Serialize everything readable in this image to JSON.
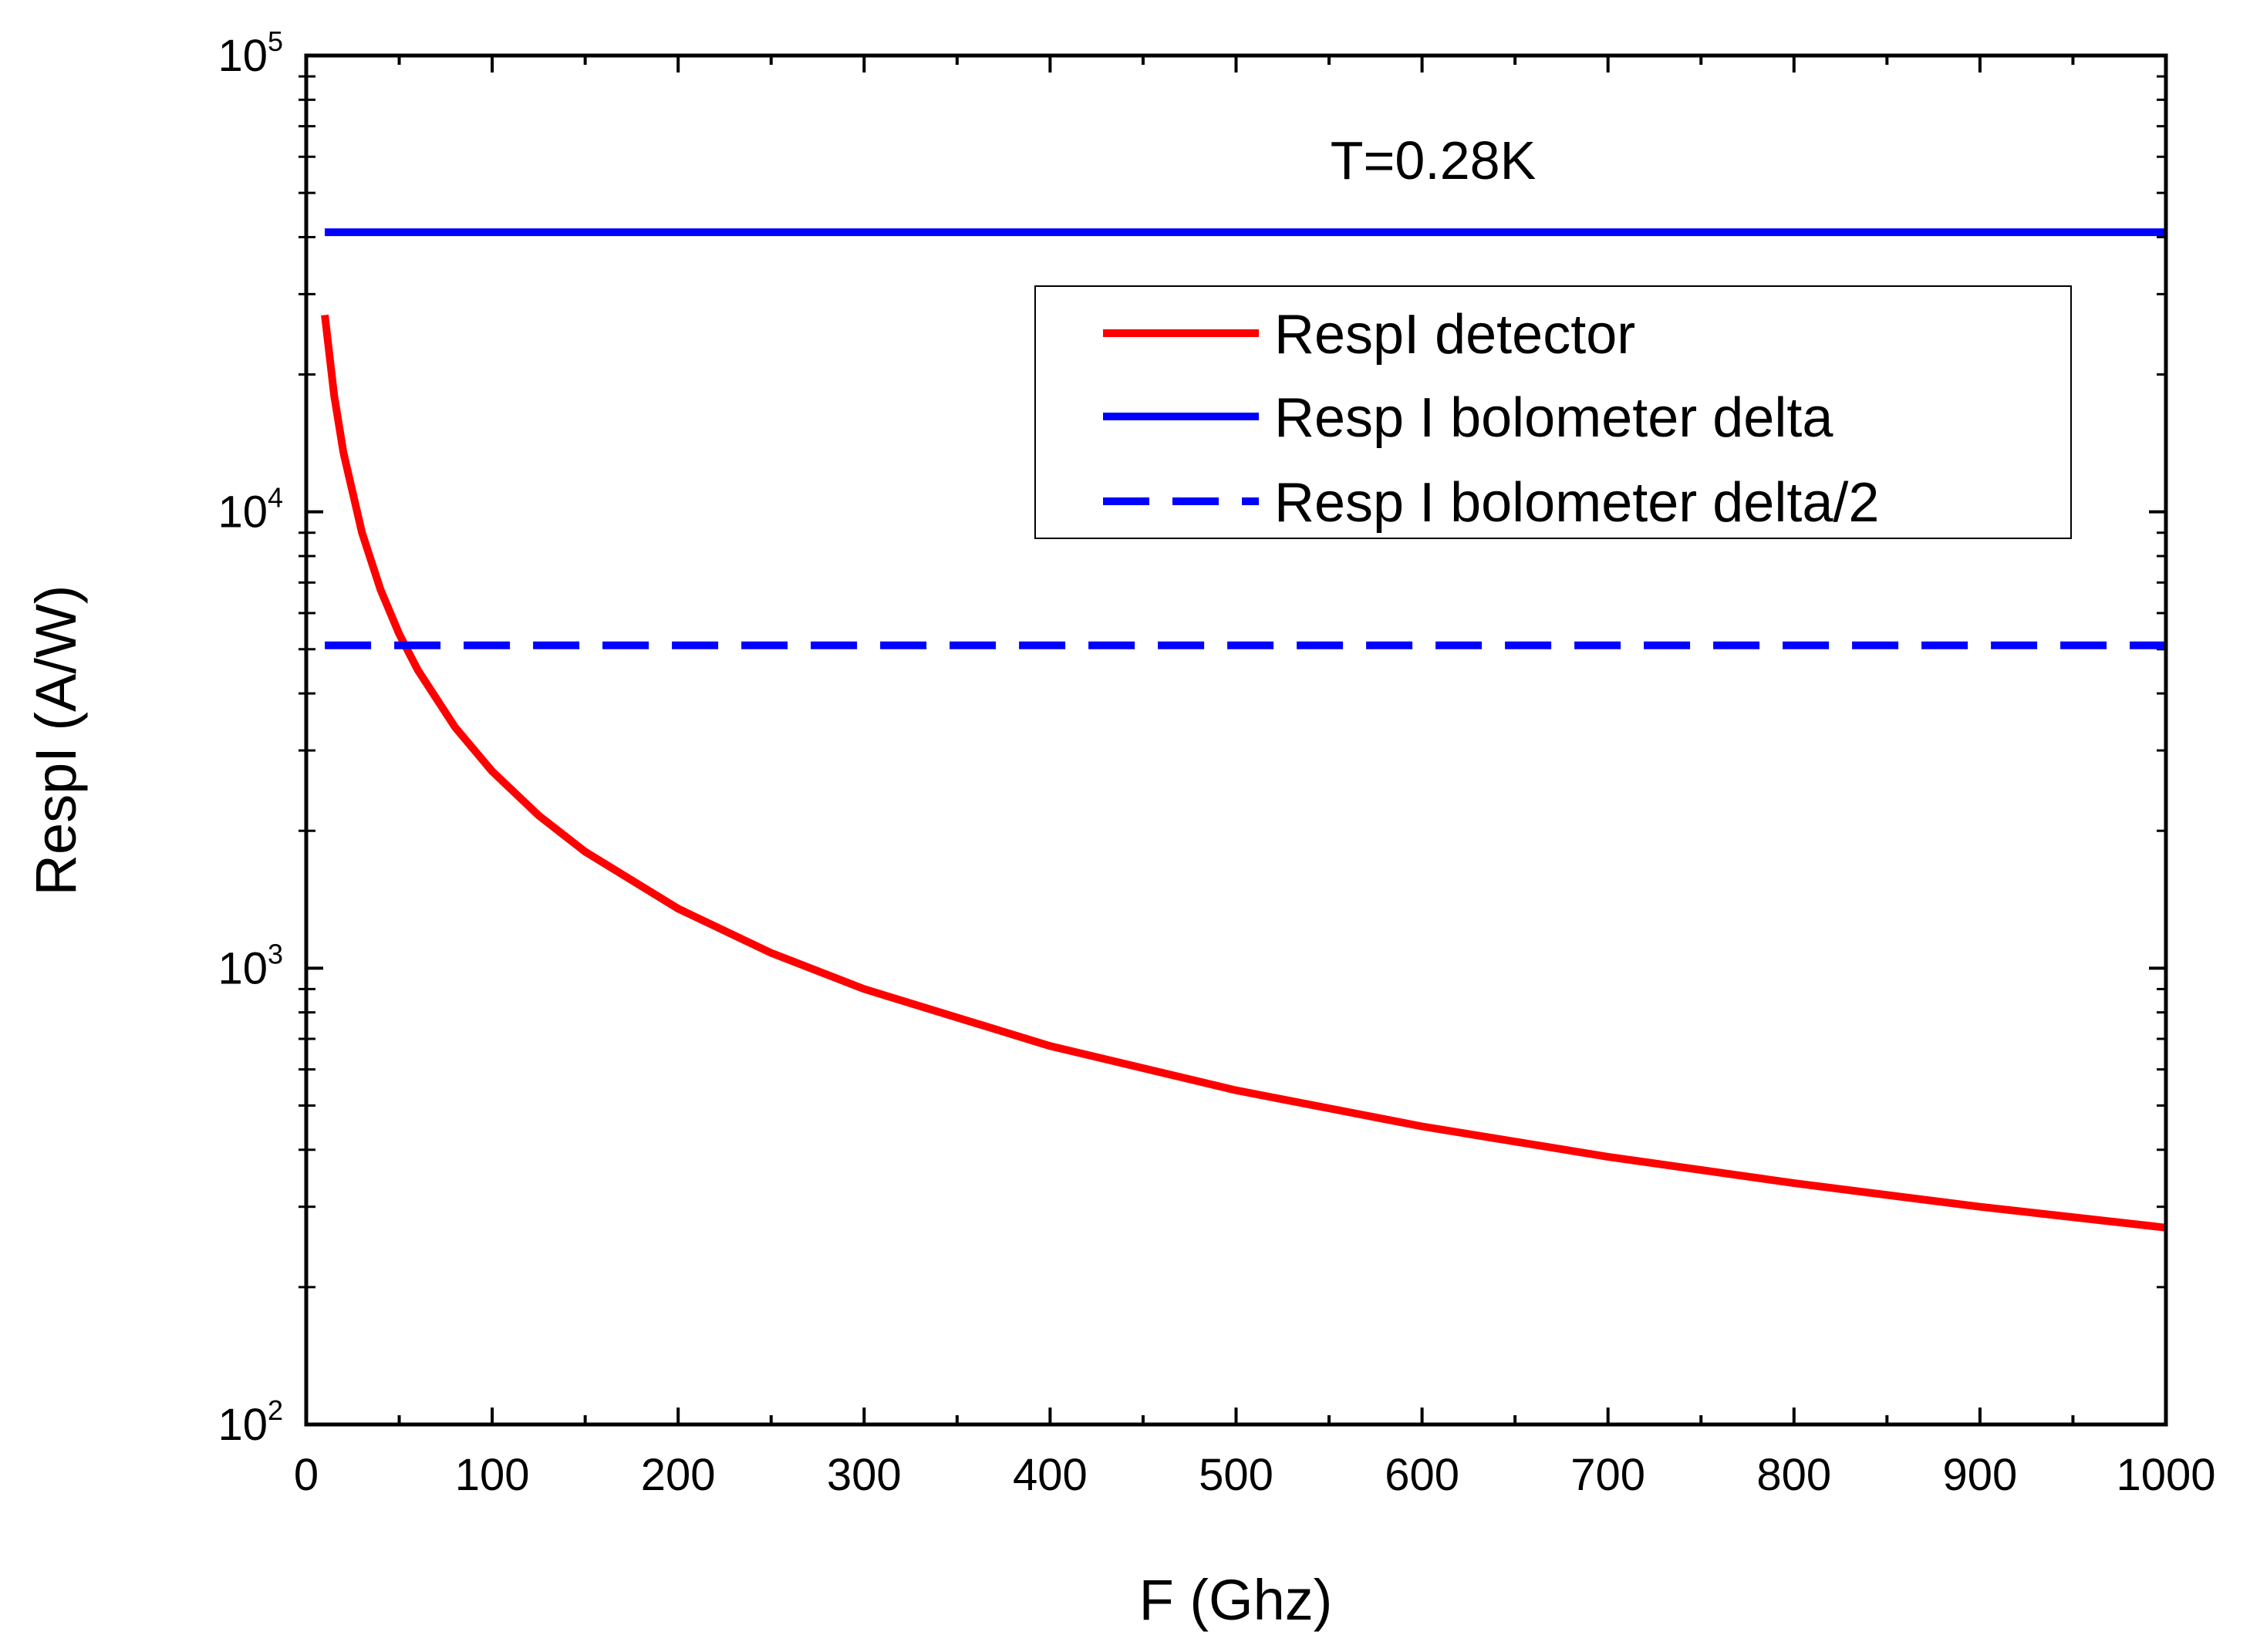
{
  "chart_data": {
    "type": "line",
    "title": "",
    "annotation": "T=0.28K",
    "xlabel": "F (Ghz)",
    "ylabel": "RespI (A/W)",
    "xlim": [
      0,
      1000
    ],
    "ylim": [
      100,
      100000
    ],
    "yscale": "log",
    "x_ticks": [
      "0",
      "100",
      "200",
      "300",
      "400",
      "500",
      "600",
      "700",
      "800",
      "900",
      "1000"
    ],
    "y_ticks": [
      {
        "base": "10",
        "exp": "2",
        "value": 100
      },
      {
        "base": "10",
        "exp": "3",
        "value": 1000
      },
      {
        "base": "10",
        "exp": "4",
        "value": 10000
      },
      {
        "base": "10",
        "exp": "5",
        "value": 100000
      }
    ],
    "legend_position": "upper-right",
    "series": [
      {
        "name": "RespI detector",
        "color": "#ff0000",
        "style": "solid",
        "x": [
          10,
          15,
          20,
          30,
          40,
          50,
          60,
          80,
          100,
          125,
          150,
          200,
          250,
          300,
          400,
          500,
          600,
          700,
          800,
          900,
          1000
        ],
        "values": [
          27000,
          18000,
          13500,
          9000,
          6750,
          5400,
          4500,
          3375,
          2700,
          2160,
          1800,
          1350,
          1080,
          900,
          675,
          540,
          450,
          386,
          338,
          300,
          270
        ]
      },
      {
        "name": "Resp I bolometer delta",
        "color": "#0000ff",
        "style": "solid",
        "x": [
          10,
          1000
        ],
        "values": [
          41000,
          41000
        ]
      },
      {
        "name": "Resp I bolometer delta/2",
        "color": "#0000ff",
        "style": "dashed",
        "x": [
          10,
          1000
        ],
        "values": [
          5100,
          5100
        ]
      }
    ]
  }
}
